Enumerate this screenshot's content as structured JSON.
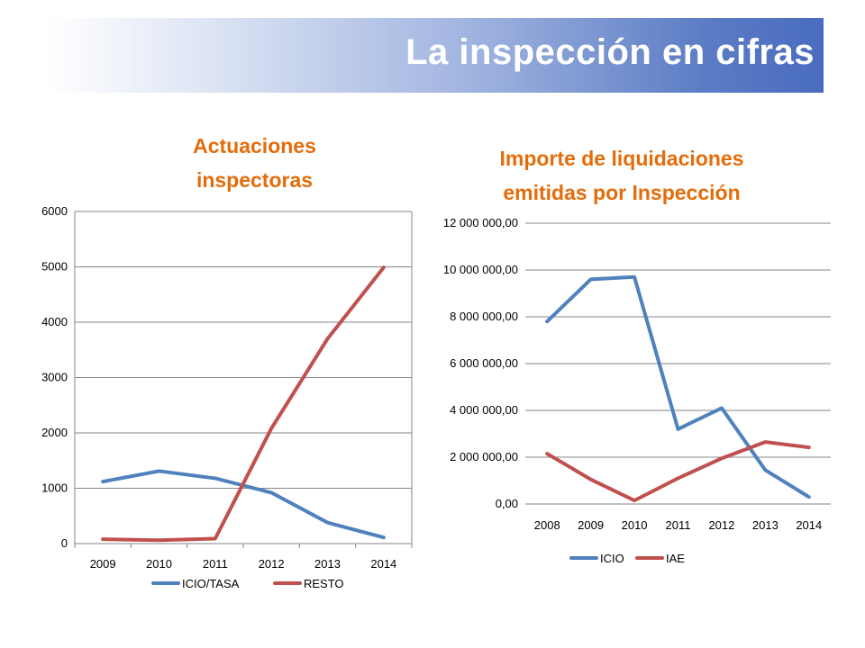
{
  "header": {
    "title": "La inspección en cifras"
  },
  "chart_data": [
    {
      "type": "line",
      "title": "Actuaciones inspectoras",
      "categories": [
        "2009",
        "2010",
        "2011",
        "2012",
        "2013",
        "2014"
      ],
      "series": [
        {
          "name": "ICIO/TASA",
          "color": "#4f81bd",
          "values": [
            1120,
            1310,
            1180,
            920,
            380,
            110
          ]
        },
        {
          "name": "RESTO",
          "color": "#c0504d",
          "values": [
            80,
            60,
            90,
            2080,
            3700,
            4990
          ]
        }
      ],
      "yticks": [
        "0",
        "1000",
        "2000",
        "3000",
        "4000",
        "5000",
        "6000"
      ],
      "ylim": [
        0,
        6000
      ],
      "grid": true,
      "legend": "bottom"
    },
    {
      "type": "line",
      "title": "Importe de liquidaciones emitidas por Inspección",
      "categories": [
        "2008",
        "2009",
        "2010",
        "2011",
        "2012",
        "2013",
        "2014"
      ],
      "series": [
        {
          "name": "ICIO",
          "color": "#4f81bd",
          "values": [
            7800000,
            9600000,
            9700000,
            3200000,
            4100000,
            1450000,
            300000
          ]
        },
        {
          "name": "IAE",
          "color": "#c0504d",
          "values": [
            2150000,
            1050000,
            150000,
            1100000,
            1950000,
            2650000,
            2420000
          ]
        }
      ],
      "yticks": [
        "0,00",
        "2 000 000,00",
        "4 000 000,00",
        "6 000 000,00",
        "8 000 000,00",
        "10 000 000,00",
        "12 000 000,00"
      ],
      "ylim": [
        0,
        12000000
      ],
      "grid": true,
      "legend": "bottom"
    }
  ]
}
